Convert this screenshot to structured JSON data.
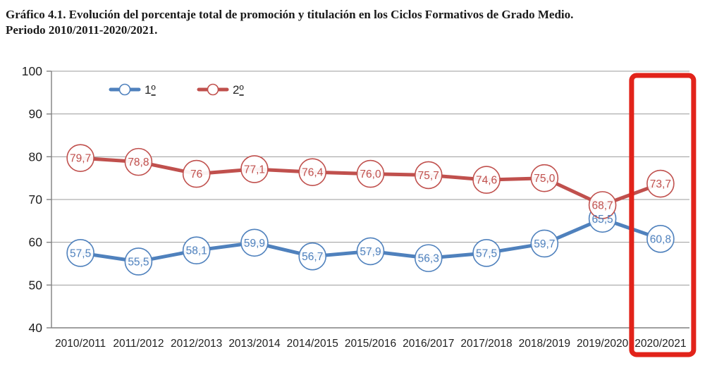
{
  "title": {
    "line1": "Gráfico 4.1. Evolución del porcentaje total de promoción y titulación en los Ciclos Formativos de Grado Medio.",
    "line2": "Periodo 2010/2011-2020/2021."
  },
  "chart_data": {
    "type": "line",
    "title": "Gráfico 4.1. Evolución del porcentaje total de promoción y titulación en los Ciclos Formativos de Grado Medio. Periodo 2010/2011-2020/2021.",
    "categories": [
      "2010/2011",
      "2011/2012",
      "2012/2013",
      "2013/2014",
      "2014/2015",
      "2015/2016",
      "2016/2017",
      "2017/2018",
      "2018/2019",
      "2019/2020",
      "2020/2021"
    ],
    "series": [
      {
        "name": "1º",
        "color": "#4F81BD",
        "values": [
          57.5,
          55.5,
          58.1,
          59.9,
          56.7,
          57.9,
          56.3,
          57.5,
          59.7,
          65.5,
          60.8
        ],
        "labels": [
          "57,5",
          "55,5",
          "58,1",
          "59,9",
          "56,7",
          "57,9",
          "56,3",
          "57,5",
          "59,7",
          "65,5",
          "60,8"
        ]
      },
      {
        "name": "2º",
        "color": "#C0504D",
        "values": [
          79.7,
          78.8,
          76.0,
          77.1,
          76.4,
          76.0,
          75.7,
          74.6,
          75.0,
          68.7,
          73.7
        ],
        "labels": [
          "79,7",
          "78,8",
          "76",
          "77,1",
          "76,4",
          "76,0",
          "75,7",
          "74,6",
          "75,0",
          "68,7",
          "73,7"
        ]
      }
    ],
    "xlabel": "",
    "ylabel": "",
    "ylim": [
      40,
      100
    ],
    "yticks": [
      40,
      50,
      60,
      70,
      80,
      90,
      100
    ],
    "grid": true,
    "legend_position": "top-left-inside",
    "marker": "circle-with-value-label",
    "highlight": {
      "category": "2020/2021",
      "color": "#E2231A"
    },
    "colors": {
      "gridline": "#9B9B9B",
      "axis": "#808080",
      "axis_text": "#1F1F1F",
      "legend_text": "#262626",
      "marker_fill": "#FFFFFF"
    }
  }
}
